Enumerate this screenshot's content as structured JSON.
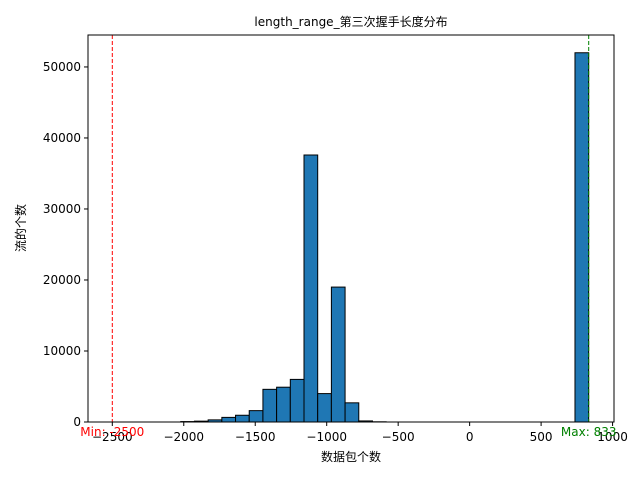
{
  "chart_data": {
    "type": "bar",
    "title": "length_range_第三次握手长度分布",
    "xlabel": "数据包个数",
    "ylabel": "流的个数",
    "xlim": [
      -2670,
      1010
    ],
    "ylim": [
      0,
      54500
    ],
    "xticks": [
      -2500,
      -2000,
      -1500,
      -1000,
      -500,
      0,
      500,
      1000
    ],
    "yticks": [
      0,
      10000,
      20000,
      30000,
      40000,
      50000
    ],
    "bin_width": 95.8,
    "bins": [
      {
        "left": -2500.0,
        "value": 0
      },
      {
        "left": -2404.2,
        "value": 0
      },
      {
        "left": -2308.4,
        "value": 0
      },
      {
        "left": -2212.6,
        "value": 0
      },
      {
        "left": -2116.8,
        "value": 0
      },
      {
        "left": -2021.0,
        "value": 60
      },
      {
        "left": -1925.2,
        "value": 120
      },
      {
        "left": -1829.4,
        "value": 300
      },
      {
        "left": -1733.6,
        "value": 650
      },
      {
        "left": -1637.8,
        "value": 950
      },
      {
        "left": -1542.0,
        "value": 1600
      },
      {
        "left": -1446.2,
        "value": 4600
      },
      {
        "left": -1350.4,
        "value": 4900
      },
      {
        "left": -1254.6,
        "value": 6000
      },
      {
        "left": -1158.8,
        "value": 37600
      },
      {
        "left": -1063.0,
        "value": 4000
      },
      {
        "left": -967.2,
        "value": 19000
      },
      {
        "left": -871.4,
        "value": 2700
      },
      {
        "left": -775.6,
        "value": 150
      },
      {
        "left": -679.8,
        "value": 30
      },
      {
        "left": 737.0,
        "value": 52000
      }
    ],
    "colors": {
      "bar": "#1f77b4",
      "edge": "#000000",
      "min_line": "#ff0000",
      "max_line": "#008000"
    },
    "annotations": [
      {
        "label": "Min: -2500",
        "x": -2500,
        "color": "#ff0000"
      },
      {
        "label": "Max: 833",
        "x": 833,
        "color": "#008000"
      }
    ]
  }
}
